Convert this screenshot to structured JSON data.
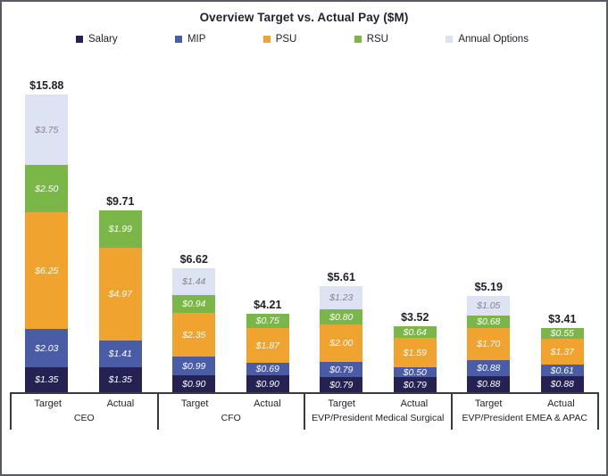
{
  "title": "Overview Target vs. Actual Pay ($M)",
  "legend": [
    {
      "label": "Salary",
      "color": "#262153",
      "icon": "legend-swatch"
    },
    {
      "label": "MIP",
      "color": "#4a5ca6",
      "icon": "legend-swatch"
    },
    {
      "label": "PSU",
      "color": "#f0a42f",
      "icon": "legend-swatch"
    },
    {
      "label": "RSU",
      "color": "#7ab648",
      "icon": "legend-swatch"
    },
    {
      "label": "Annual Options",
      "color": "#dde3f2",
      "icon": "legend-swatch"
    }
  ],
  "chart_data": {
    "type": "bar",
    "stacked": true,
    "title": "Overview Target vs. Actual Pay ($M)",
    "unit": "$M",
    "ylim": [
      0,
      18
    ],
    "grid": false,
    "legend_position": "top",
    "series_order": [
      "Salary",
      "MIP",
      "PSU",
      "RSU",
      "Annual Options"
    ],
    "series_colors": {
      "Salary": "#262153",
      "MIP": "#4a5ca6",
      "PSU": "#f0a42f",
      "RSU": "#7ab648",
      "Annual Options": "#dde3f2"
    },
    "series_label_colors": {
      "Salary": "#ffffff",
      "MIP": "#ffffff",
      "PSU": "#ffffff",
      "RSU": "#ffffff",
      "Annual Options": "#84848e"
    },
    "groups": [
      {
        "label": "CEO",
        "bars": [
          {
            "label": "Target",
            "total": 15.88,
            "total_label": "$15.88",
            "segments": [
              {
                "series": "Salary",
                "value": 1.35,
                "label": "$1.35"
              },
              {
                "series": "MIP",
                "value": 2.03,
                "label": "$2.03"
              },
              {
                "series": "PSU",
                "value": 6.25,
                "label": "$6.25"
              },
              {
                "series": "RSU",
                "value": 2.5,
                "label": "$2.50"
              },
              {
                "series": "Annual Options",
                "value": 3.75,
                "label": "$3.75"
              }
            ]
          },
          {
            "label": "Actual",
            "total": 9.71,
            "total_label": "$9.71",
            "segments": [
              {
                "series": "Salary",
                "value": 1.35,
                "label": "$1.35"
              },
              {
                "series": "MIP",
                "value": 1.41,
                "label": "$1.41"
              },
              {
                "series": "PSU",
                "value": 4.97,
                "label": "$4.97"
              },
              {
                "series": "RSU",
                "value": 1.99,
                "label": "$1.99"
              }
            ]
          }
        ]
      },
      {
        "label": "CFO",
        "bars": [
          {
            "label": "Target",
            "total": 6.62,
            "total_label": "$6.62",
            "segments": [
              {
                "series": "Salary",
                "value": 0.9,
                "label": "$0.90"
              },
              {
                "series": "MIP",
                "value": 0.99,
                "label": "$0.99"
              },
              {
                "series": "PSU",
                "value": 2.35,
                "label": "$2.35"
              },
              {
                "series": "RSU",
                "value": 0.94,
                "label": "$0.94"
              },
              {
                "series": "Annual Options",
                "value": 1.44,
                "label": "$1.44"
              }
            ]
          },
          {
            "label": "Actual",
            "total": 4.21,
            "total_label": "$4.21",
            "segments": [
              {
                "series": "Salary",
                "value": 0.9,
                "label": "$0.90"
              },
              {
                "series": "MIP",
                "value": 0.69,
                "label": "$0.69"
              },
              {
                "series": "PSU",
                "value": 1.87,
                "label": "$1.87"
              },
              {
                "series": "RSU",
                "value": 0.75,
                "label": "$0.75"
              }
            ]
          }
        ]
      },
      {
        "label": "EVP/President Medical Surgical",
        "bars": [
          {
            "label": "Target",
            "total": 5.61,
            "total_label": "$5.61",
            "segments": [
              {
                "series": "Salary",
                "value": 0.79,
                "label": "$0.79"
              },
              {
                "series": "MIP",
                "value": 0.79,
                "label": "$0.79"
              },
              {
                "series": "PSU",
                "value": 2.0,
                "label": "$2.00"
              },
              {
                "series": "RSU",
                "value": 0.8,
                "label": "$0.80"
              },
              {
                "series": "Annual Options",
                "value": 1.23,
                "label": "$1.23"
              }
            ]
          },
          {
            "label": "Actual",
            "total": 3.52,
            "total_label": "$3.52",
            "segments": [
              {
                "series": "Salary",
                "value": 0.79,
                "label": "$0.79"
              },
              {
                "series": "MIP",
                "value": 0.5,
                "label": "$0.50"
              },
              {
                "series": "PSU",
                "value": 1.59,
                "label": "$1.59"
              },
              {
                "series": "RSU",
                "value": 0.64,
                "label": "$0.64"
              }
            ]
          }
        ]
      },
      {
        "label": "EVP/President EMEA & APAC",
        "bars": [
          {
            "label": "Target",
            "total": 5.19,
            "total_label": "$5.19",
            "segments": [
              {
                "series": "Salary",
                "value": 0.88,
                "label": "$0.88"
              },
              {
                "series": "MIP",
                "value": 0.88,
                "label": "$0.88"
              },
              {
                "series": "PSU",
                "value": 1.7,
                "label": "$1.70"
              },
              {
                "series": "RSU",
                "value": 0.68,
                "label": "$0.68"
              },
              {
                "series": "Annual Options",
                "value": 1.05,
                "label": "$1.05"
              }
            ]
          },
          {
            "label": "Actual",
            "total": 3.41,
            "total_label": "$3.41",
            "segments": [
              {
                "series": "Salary",
                "value": 0.88,
                "label": "$0.88"
              },
              {
                "series": "MIP",
                "value": 0.61,
                "label": "$0.61"
              },
              {
                "series": "PSU",
                "value": 1.37,
                "label": "$1.37"
              },
              {
                "series": "RSU",
                "value": 0.55,
                "label": "$0.55"
              }
            ]
          }
        ]
      }
    ]
  }
}
